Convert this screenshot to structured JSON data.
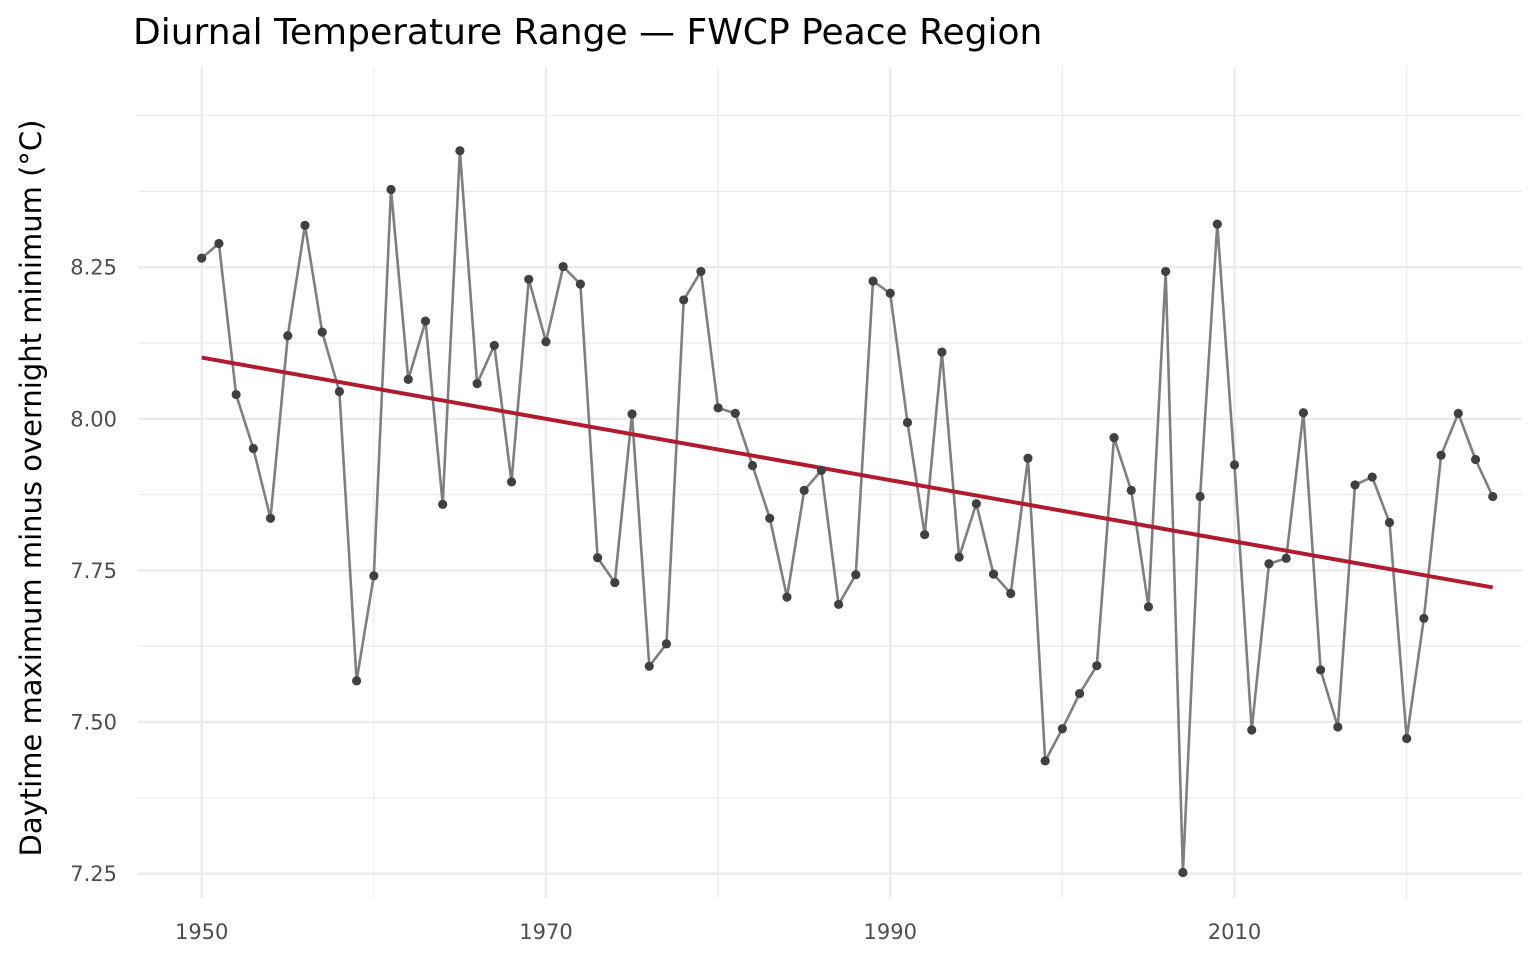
{
  "chart_data": {
    "type": "line",
    "title": "Diurnal Temperature Range — FWCP Peace Region",
    "xlabel": "",
    "ylabel": "Daytime maximum minus overnight minimum (°C)",
    "xlim": [
      1946.3,
      2026.7
    ],
    "ylim": [
      7.21,
      8.58
    ],
    "x_ticks": [
      1950,
      1970,
      1990,
      2010
    ],
    "x_tick_labels": [
      "1950",
      "1970",
      "1990",
      "2010"
    ],
    "y_ticks": [
      7.25,
      7.5,
      7.75,
      8.0,
      8.25
    ],
    "y_tick_labels": [
      "7.25",
      "7.50",
      "7.75",
      "8.00",
      "8.25"
    ],
    "grid": true,
    "legend": "none",
    "colors": {
      "series": "#7f7f7f",
      "points": "#404040",
      "trend": "#b01c2e",
      "grid": "#ebebeb"
    },
    "series": [
      {
        "x": [
          1950,
          1951,
          1952,
          1953,
          1954,
          1955,
          1956,
          1957,
          1958,
          1959,
          1960,
          1961,
          1962,
          1963,
          1964,
          1965,
          1966,
          1967,
          1968,
          1969,
          1970,
          1971,
          1972,
          1973,
          1974,
          1975,
          1976,
          1977,
          1978,
          1979,
          1980,
          1981,
          1982,
          1983,
          1984,
          1985,
          1986,
          1987,
          1988,
          1989,
          1990,
          1991,
          1992,
          1993,
          1994,
          1995,
          1996,
          1997,
          1998,
          1999,
          2000,
          2001,
          2002,
          2003,
          2004,
          2005,
          2006,
          2007,
          2008,
          2009,
          2010,
          2011,
          2012,
          2013,
          2014,
          2015,
          2016,
          2017,
          2018,
          2019,
          2020,
          2021,
          2022,
          2023,
          2024,
          2025
        ],
        "values": [
          8.265,
          8.289,
          8.04,
          7.951,
          7.836,
          8.137,
          8.319,
          8.143,
          8.045,
          7.568,
          7.741,
          8.378,
          8.065,
          8.161,
          7.859,
          8.442,
          8.058,
          8.121,
          7.896,
          8.23,
          8.127,
          8.251,
          8.222,
          7.771,
          7.73,
          8.008,
          7.592,
          7.629,
          8.196,
          8.243,
          8.018,
          8.009,
          7.923,
          7.836,
          7.706,
          7.882,
          7.915,
          7.694,
          7.743,
          8.227,
          8.207,
          7.994,
          7.809,
          8.11,
          7.772,
          7.86,
          7.744,
          7.712,
          7.935,
          7.436,
          7.489,
          7.547,
          7.593,
          7.969,
          7.882,
          7.69,
          8.243,
          7.252,
          7.872,
          8.321,
          7.924,
          7.487,
          7.761,
          7.77,
          8.01,
          7.586,
          7.492,
          7.891,
          7.904,
          7.829,
          7.473,
          7.671,
          7.94,
          8.009,
          7.933,
          7.872
        ]
      }
    ],
    "trend": {
      "x": [
        1950,
        2025
      ],
      "values": [
        8.101,
        7.722
      ]
    }
  }
}
